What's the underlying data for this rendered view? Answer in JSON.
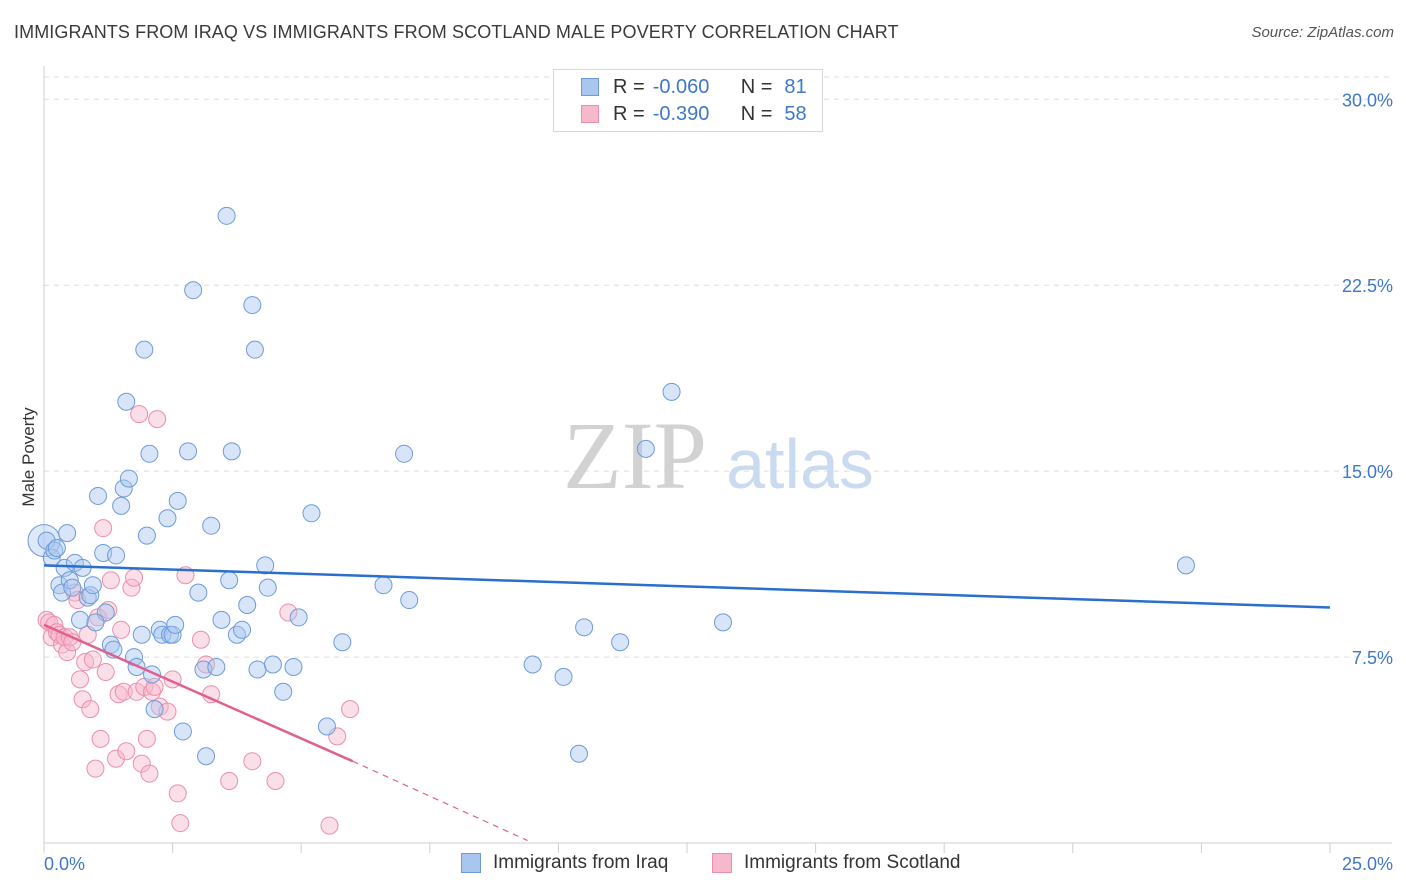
{
  "header": {
    "title": "IMMIGRANTS FROM IRAQ VS IMMIGRANTS FROM SCOTLAND MALE POVERTY CORRELATION CHART",
    "source": "Source: ZipAtlas.com"
  },
  "watermark": {
    "zip": "ZIP",
    "atlas": "atlas"
  },
  "legend": {
    "iraq": {
      "r_label": "R =",
      "r_value": "-0.060",
      "n_label": "N =",
      "n_value": "81"
    },
    "scotland": {
      "r_label": "R =",
      "r_value": "-0.390",
      "n_label": "N =",
      "n_value": "58"
    }
  },
  "colors": {
    "iraq_fill": "#a9c6ef",
    "iraq_stroke": "#6d9bd8",
    "iraq_line": "#2a6fcc",
    "scotland_fill": "#f6b9cc",
    "scotland_stroke": "#ec8fab",
    "scotland_line": "#e0608f",
    "tick": "#3f78c9",
    "grid": "#dddddd"
  },
  "chart_data": {
    "type": "scatter",
    "title": "IMMIGRANTS FROM IRAQ VS IMMIGRANTS FROM SCOTLAND MALE POVERTY CORRELATION CHART",
    "xlabel": "",
    "ylabel": "Male Poverty",
    "xlim": [
      0,
      25
    ],
    "ylim": [
      0,
      30.9
    ],
    "x_tick_labels": [
      "0.0%",
      "25.0%"
    ],
    "y_ticks": [
      7.5,
      15.0,
      22.5,
      30.0
    ],
    "y_tick_labels": [
      "7.5%",
      "15.0%",
      "22.5%",
      "30.0%"
    ],
    "series": [
      {
        "name": "Immigrants from Iraq",
        "r": -0.06,
        "n": 81,
        "trend": {
          "x": [
            0,
            25
          ],
          "y": [
            11.2,
            9.5
          ]
        },
        "points": [
          [
            0.05,
            12.2
          ],
          [
            0.15,
            11.5
          ],
          [
            0.2,
            11.8
          ],
          [
            0.3,
            10.4
          ],
          [
            0.35,
            10.1
          ],
          [
            0.4,
            11.1
          ],
          [
            0.45,
            12.5
          ],
          [
            0.5,
            10.6
          ],
          [
            0.55,
            10.3
          ],
          [
            0.6,
            11.3
          ],
          [
            0.7,
            9.0
          ],
          [
            0.75,
            11.1
          ],
          [
            0.85,
            9.9
          ],
          [
            0.9,
            10.0
          ],
          [
            0.95,
            10.4
          ],
          [
            1.05,
            14.0
          ],
          [
            1.15,
            11.7
          ],
          [
            1.2,
            9.3
          ],
          [
            1.3,
            8.0
          ],
          [
            1.35,
            7.8
          ],
          [
            1.4,
            11.6
          ],
          [
            1.5,
            13.6
          ],
          [
            1.55,
            14.3
          ],
          [
            1.6,
            17.8
          ],
          [
            1.65,
            14.7
          ],
          [
            1.75,
            7.5
          ],
          [
            1.8,
            7.1
          ],
          [
            1.9,
            8.4
          ],
          [
            1.95,
            19.9
          ],
          [
            2.0,
            12.4
          ],
          [
            2.05,
            15.7
          ],
          [
            2.1,
            6.8
          ],
          [
            2.15,
            5.4
          ],
          [
            2.25,
            8.6
          ],
          [
            2.3,
            8.4
          ],
          [
            2.4,
            13.1
          ],
          [
            2.45,
            8.4
          ],
          [
            2.5,
            8.4
          ],
          [
            2.55,
            8.8
          ],
          [
            2.6,
            13.8
          ],
          [
            2.7,
            4.5
          ],
          [
            2.8,
            15.8
          ],
          [
            2.9,
            22.3
          ],
          [
            3.0,
            10.1
          ],
          [
            3.1,
            7.0
          ],
          [
            3.15,
            3.5
          ],
          [
            3.25,
            12.8
          ],
          [
            3.35,
            7.1
          ],
          [
            3.45,
            9.0
          ],
          [
            3.55,
            25.3
          ],
          [
            3.6,
            10.6
          ],
          [
            3.65,
            15.8
          ],
          [
            3.75,
            8.4
          ],
          [
            3.85,
            8.6
          ],
          [
            3.95,
            9.6
          ],
          [
            4.05,
            21.7
          ],
          [
            4.1,
            19.9
          ],
          [
            4.15,
            7.0
          ],
          [
            4.3,
            11.2
          ],
          [
            4.35,
            10.3
          ],
          [
            4.45,
            7.2
          ],
          [
            4.65,
            6.1
          ],
          [
            4.85,
            7.1
          ],
          [
            4.95,
            9.1
          ],
          [
            5.2,
            13.3
          ],
          [
            5.5,
            4.7
          ],
          [
            5.8,
            8.1
          ],
          [
            6.6,
            10.4
          ],
          [
            7.0,
            15.7
          ],
          [
            7.1,
            9.8
          ],
          [
            9.5,
            7.2
          ],
          [
            10.1,
            6.7
          ],
          [
            10.4,
            3.6
          ],
          [
            10.5,
            8.7
          ],
          [
            11.2,
            8.1
          ],
          [
            11.7,
            15.9
          ],
          [
            12.2,
            18.2
          ],
          [
            13.2,
            8.9
          ],
          [
            22.2,
            11.2
          ],
          [
            0.25,
            11.9
          ],
          [
            1.0,
            8.9
          ]
        ]
      },
      {
        "name": "Immigrants from Scotland",
        "r": -0.39,
        "n": 58,
        "trend": {
          "x": [
            0,
            6.0
          ],
          "y": [
            8.8,
            3.3
          ]
        },
        "trend_dashed": {
          "x": [
            6.0,
            9.4
          ],
          "y": [
            3.3,
            0.1
          ]
        },
        "points": [
          [
            0.05,
            9.0
          ],
          [
            0.1,
            8.9
          ],
          [
            0.15,
            8.3
          ],
          [
            0.2,
            8.8
          ],
          [
            0.25,
            8.5
          ],
          [
            0.3,
            8.4
          ],
          [
            0.35,
            8.0
          ],
          [
            0.4,
            8.3
          ],
          [
            0.45,
            7.7
          ],
          [
            0.5,
            8.3
          ],
          [
            0.55,
            8.1
          ],
          [
            0.6,
            10.1
          ],
          [
            0.65,
            9.8
          ],
          [
            0.7,
            6.6
          ],
          [
            0.75,
            5.8
          ],
          [
            0.8,
            7.3
          ],
          [
            0.85,
            8.4
          ],
          [
            0.9,
            5.4
          ],
          [
            0.95,
            7.4
          ],
          [
            1.0,
            3.0
          ],
          [
            1.05,
            9.1
          ],
          [
            1.1,
            4.2
          ],
          [
            1.15,
            12.7
          ],
          [
            1.2,
            6.9
          ],
          [
            1.25,
            9.4
          ],
          [
            1.3,
            10.6
          ],
          [
            1.4,
            3.4
          ],
          [
            1.45,
            6.0
          ],
          [
            1.5,
            8.6
          ],
          [
            1.55,
            6.1
          ],
          [
            1.6,
            3.7
          ],
          [
            1.7,
            10.3
          ],
          [
            1.75,
            10.7
          ],
          [
            1.8,
            6.1
          ],
          [
            1.85,
            17.3
          ],
          [
            1.9,
            3.2
          ],
          [
            1.95,
            6.3
          ],
          [
            2.0,
            4.2
          ],
          [
            2.05,
            2.8
          ],
          [
            2.1,
            6.1
          ],
          [
            2.15,
            6.3
          ],
          [
            2.2,
            17.1
          ],
          [
            2.25,
            5.5
          ],
          [
            2.4,
            5.3
          ],
          [
            2.5,
            6.6
          ],
          [
            2.6,
            2.0
          ],
          [
            2.65,
            0.8
          ],
          [
            2.75,
            10.8
          ],
          [
            3.05,
            8.2
          ],
          [
            3.15,
            7.2
          ],
          [
            3.25,
            6.0
          ],
          [
            3.6,
            2.5
          ],
          [
            4.05,
            3.3
          ],
          [
            4.5,
            2.5
          ],
          [
            4.75,
            9.3
          ],
          [
            5.55,
            0.7
          ],
          [
            5.7,
            4.3
          ],
          [
            5.95,
            5.4
          ]
        ]
      }
    ]
  },
  "bottom_legend": {
    "iraq": "Immigrants from Iraq",
    "scotland": "Immigrants from Scotland"
  }
}
